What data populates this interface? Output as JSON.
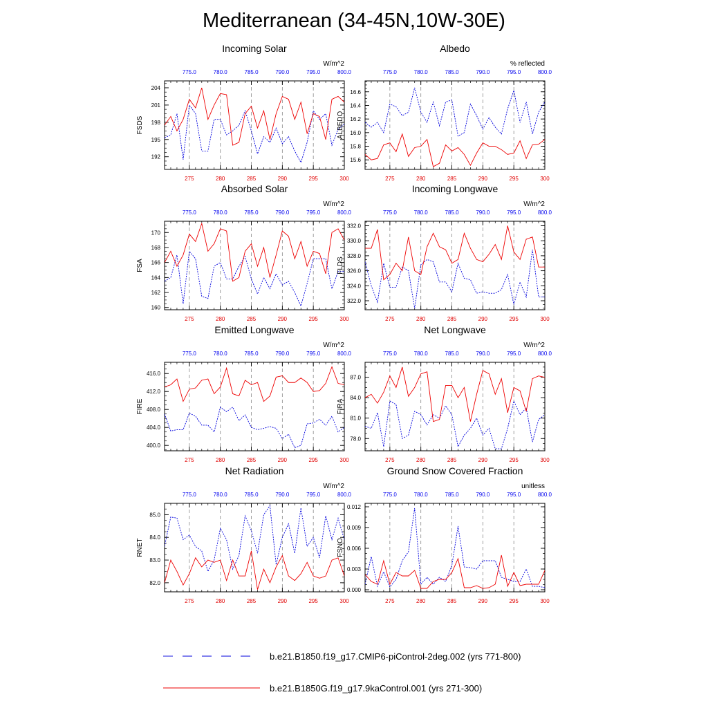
{
  "title": "Mediterranean (34-45N,10W-30E)",
  "colors": {
    "series_a": "#0000dd",
    "series_b": "#ee0000",
    "grid": "#888888"
  },
  "legend": [
    {
      "label": "b.e21.B1850.f19_g17.CMIP6-piControl-2deg.002 (yrs 771-800)",
      "style": "dashed",
      "color": "#0000dd"
    },
    {
      "label": "b.e21.B1850G.f19_g17.9kaControl.001 (yrs 271-300)",
      "style": "solid",
      "color": "#ee0000"
    }
  ],
  "chart_data": [
    {
      "type": "line",
      "title": "Incoming Solar",
      "units": "W/m^2",
      "ylabel": "FSDS",
      "xlim_bottom": [
        271,
        300
      ],
      "xlim_top": [
        771,
        800
      ],
      "x_ticks_bottom": [
        "275",
        "280",
        "285",
        "290",
        "295",
        "300"
      ],
      "x_ticks_top": [
        "775.0",
        "780.0",
        "785.0",
        "790.0",
        "795.0",
        "800.0"
      ],
      "ylim": [
        189.8,
        205.2
      ],
      "yticks": [
        192,
        195,
        198,
        201,
        204
      ],
      "ytick_labels": [
        "192",
        "195",
        "198",
        "201",
        "204"
      ],
      "series": [
        {
          "name": "b.e21.B1850.f19_g17.CMIP6-piControl-2deg.002 (yrs 771-800)",
          "values": [
            195.3,
            195.8,
            199.5,
            191.5,
            201.0,
            199.5,
            193.0,
            193.0,
            198.5,
            198.5,
            195.8,
            196.5,
            197.5,
            200.0,
            196.5,
            192.5,
            195.5,
            194.5,
            197.0,
            194.3,
            195.5,
            193.0,
            191.0,
            194.5,
            200.0,
            198.5,
            199.5,
            194.0,
            196.8,
            197.7
          ]
        },
        {
          "name": "b.e21.B1850G.f19_g17.9kaControl.001 (yrs 271-300)",
          "values": [
            197.5,
            199.0,
            196.5,
            198.5,
            202.0,
            200.5,
            204.0,
            198.5,
            201.0,
            203.0,
            202.8,
            194.0,
            194.5,
            199.5,
            200.8,
            197.0,
            200.0,
            195.0,
            199.5,
            202.5,
            202.0,
            198.5,
            201.5,
            196.0,
            199.5,
            199.0,
            195.0,
            202.0,
            202.5,
            201.5
          ]
        }
      ]
    },
    {
      "type": "line",
      "title": "Albedo",
      "units": "% reflected",
      "ylabel": "ALBEDO",
      "xlim_bottom": [
        271,
        300
      ],
      "xlim_top": [
        771,
        800
      ],
      "x_ticks_bottom": [
        "275",
        "280",
        "285",
        "290",
        "295",
        "300"
      ],
      "x_ticks_top": [
        "775.0",
        "780.0",
        "785.0",
        "790.0",
        "795.0",
        "800.0"
      ],
      "ylim": [
        15.46,
        16.76
      ],
      "yticks": [
        15.6,
        15.8,
        16.0,
        16.2,
        16.4,
        16.6
      ],
      "ytick_labels": [
        "15.6",
        "15.8",
        "16.0",
        "16.2",
        "16.4",
        "16.6"
      ],
      "series": [
        {
          "name": "b.e21.B1850.f19_g17.CMIP6-piControl-2deg.002 (yrs 771-800)",
          "values": [
            16.15,
            16.08,
            16.15,
            16.0,
            16.42,
            16.38,
            16.25,
            16.3,
            16.66,
            16.3,
            16.15,
            16.45,
            16.1,
            16.45,
            16.48,
            15.95,
            16.0,
            16.42,
            16.25,
            16.05,
            16.22,
            16.08,
            15.98,
            16.35,
            16.62,
            16.15,
            16.45,
            15.98,
            16.3,
            16.45
          ]
        },
        {
          "name": "b.e21.B1850G.f19_g17.9kaControl.001 (yrs 271-300)",
          "values": [
            15.68,
            15.6,
            15.62,
            15.82,
            15.85,
            15.72,
            15.98,
            15.65,
            15.78,
            15.8,
            15.9,
            15.5,
            15.55,
            15.82,
            15.73,
            15.78,
            15.68,
            15.52,
            15.7,
            15.85,
            15.8,
            15.8,
            15.75,
            15.68,
            15.7,
            15.88,
            15.62,
            15.82,
            15.83,
            15.9
          ]
        }
      ]
    },
    {
      "type": "line",
      "title": "Absorbed Solar",
      "units": "W/m^2",
      "ylabel": "FSA",
      "xlim_bottom": [
        271,
        300
      ],
      "xlim_top": [
        771,
        800
      ],
      "x_ticks_bottom": [
        "275",
        "280",
        "285",
        "290",
        "295",
        "300"
      ],
      "x_ticks_top": [
        "775.0",
        "780.0",
        "785.0",
        "790.0",
        "795.0",
        "800.0"
      ],
      "ylim": [
        159.7,
        171.5
      ],
      "yticks": [
        160,
        162,
        164,
        166,
        168,
        170
      ],
      "ytick_labels": [
        "160",
        "162",
        "164",
        "166",
        "168",
        "170"
      ],
      "series": [
        {
          "name": "b.e21.B1850.f19_g17.CMIP6-piControl-2deg.002 (yrs 771-800)",
          "values": [
            163.5,
            164.0,
            167.0,
            160.5,
            167.5,
            166.5,
            161.5,
            161.2,
            165.5,
            166.0,
            163.8,
            163.8,
            165.5,
            166.8,
            163.8,
            161.8,
            164.0,
            162.5,
            164.5,
            163.0,
            163.5,
            162.0,
            160.2,
            163.2,
            166.5,
            166.5,
            166.5,
            162.5,
            164.8,
            164.8
          ]
        },
        {
          "name": "b.e21.B1850G.f19_g17.9kaControl.001 (yrs 271-300)",
          "values": [
            166.0,
            167.5,
            165.5,
            167.0,
            169.8,
            168.8,
            171.2,
            167.5,
            168.5,
            170.5,
            170.2,
            163.5,
            164.0,
            167.5,
            168.5,
            165.5,
            168.0,
            164.0,
            167.0,
            170.2,
            169.5,
            166.5,
            168.8,
            165.5,
            167.5,
            167.2,
            164.5,
            170.0,
            170.5,
            169.0
          ]
        }
      ]
    },
    {
      "type": "line",
      "title": "Incoming Longwave",
      "units": "W/m^2",
      "ylabel": "FLDS",
      "xlim_bottom": [
        271,
        300
      ],
      "xlim_top": [
        771,
        800
      ],
      "x_ticks_bottom": [
        "275",
        "280",
        "285",
        "290",
        "295",
        "300"
      ],
      "x_ticks_top": [
        "775.0",
        "780.0",
        "785.0",
        "790.0",
        "795.0",
        "800.0"
      ],
      "ylim": [
        320.8,
        332.6
      ],
      "yticks": [
        322,
        324,
        326,
        328,
        330,
        332
      ],
      "ytick_labels": [
        "322.0",
        "324.0",
        "326.0",
        "328.0",
        "330.0",
        "332.0"
      ],
      "series": [
        {
          "name": "b.e21.B1850.f19_g17.CMIP6-piControl-2deg.002 (yrs 771-800)",
          "values": [
            327.2,
            324.0,
            321.8,
            327.0,
            323.8,
            323.8,
            326.5,
            326.0,
            321.0,
            326.8,
            327.5,
            327.2,
            324.5,
            324.5,
            323.2,
            327.0,
            325.0,
            324.8,
            323.0,
            323.2,
            323.0,
            323.0,
            323.5,
            325.5,
            321.5,
            324.5,
            322.5,
            328.8,
            322.5,
            322.5
          ]
        },
        {
          "name": "b.e21.B1850G.f19_g17.9kaControl.001 (yrs 271-300)",
          "values": [
            329.0,
            329.0,
            331.5,
            324.8,
            325.5,
            327.0,
            326.0,
            330.5,
            326.0,
            325.5,
            329.2,
            331.0,
            329.2,
            328.8,
            327.0,
            327.5,
            331.0,
            329.0,
            327.5,
            327.2,
            328.2,
            329.5,
            327.5,
            332.0,
            328.5,
            327.5,
            330.2,
            330.5,
            326.5,
            326.5
          ]
        }
      ]
    },
    {
      "type": "line",
      "title": "Emitted Longwave",
      "units": "W/m^2",
      "ylabel": "FIRE",
      "xlim_bottom": [
        271,
        300
      ],
      "xlim_top": [
        771,
        800
      ],
      "x_ticks_bottom": [
        "275",
        "280",
        "285",
        "290",
        "295",
        "300"
      ],
      "x_ticks_top": [
        "775.0",
        "780.0",
        "785.0",
        "790.0",
        "795.0",
        "800.0"
      ],
      "ylim": [
        398.8,
        418.5
      ],
      "yticks": [
        400,
        404,
        408,
        412,
        416
      ],
      "ytick_labels": [
        "400.0",
        "404.0",
        "408.0",
        "412.0",
        "416.0"
      ],
      "series": [
        {
          "name": "b.e21.B1850.f19_g17.CMIP6-piControl-2deg.002 (yrs 771-800)",
          "values": [
            407.0,
            403.2,
            403.5,
            403.5,
            407.2,
            406.5,
            404.5,
            404.5,
            403.0,
            408.5,
            407.5,
            408.5,
            405.5,
            406.8,
            404.0,
            403.5,
            403.8,
            404.2,
            403.8,
            401.5,
            402.5,
            399.5,
            400.0,
            404.8,
            405.0,
            405.8,
            404.5,
            406.5,
            403.0,
            404.0
          ]
        },
        {
          "name": "b.e21.B1850G.f19_g17.9kaControl.001 (yrs 271-300)",
          "values": [
            413.0,
            413.5,
            414.8,
            409.8,
            412.5,
            412.8,
            414.5,
            414.8,
            411.5,
            413.0,
            417.2,
            411.5,
            411.0,
            414.5,
            413.5,
            414.0,
            409.8,
            411.0,
            415.2,
            415.5,
            414.0,
            414.0,
            415.0,
            414.0,
            412.0,
            412.2,
            413.8,
            417.5,
            413.8,
            413.5
          ]
        }
      ]
    },
    {
      "type": "line",
      "title": "Net Longwave",
      "units": "W/m^2",
      "ylabel": "FIRA",
      "xlim_bottom": [
        271,
        300
      ],
      "xlim_top": [
        771,
        800
      ],
      "x_ticks_bottom": [
        "275",
        "280",
        "285",
        "290",
        "295",
        "300"
      ],
      "x_ticks_top": [
        "775.0",
        "780.0",
        "785.0",
        "790.0",
        "795.0",
        "800.0"
      ],
      "ylim": [
        76.2,
        89.2
      ],
      "yticks": [
        78,
        81,
        84,
        87
      ],
      "ytick_labels": [
        "78.0",
        "81.0",
        "84.0",
        "87.0"
      ],
      "series": [
        {
          "name": "b.e21.B1850.f19_g17.CMIP6-piControl-2deg.002 (yrs 771-800)",
          "values": [
            79.8,
            79.5,
            81.8,
            76.8,
            83.5,
            83.0,
            78.0,
            78.5,
            82.0,
            81.5,
            80.0,
            81.5,
            81.0,
            82.8,
            81.5,
            76.8,
            78.5,
            79.5,
            81.0,
            78.5,
            79.5,
            76.5,
            76.5,
            79.5,
            83.5,
            81.5,
            82.5,
            77.5,
            80.8,
            81.5
          ]
        },
        {
          "name": "b.e21.B1850G.f19_g17.9kaControl.001 (yrs 271-300)",
          "values": [
            84.0,
            84.5,
            83.2,
            84.8,
            87.2,
            85.5,
            88.5,
            84.2,
            85.5,
            87.5,
            87.8,
            80.5,
            80.8,
            85.8,
            85.8,
            84.0,
            85.5,
            80.5,
            84.5,
            88.0,
            87.5,
            84.5,
            86.8,
            81.8,
            85.5,
            85.0,
            82.0,
            86.8,
            87.2,
            87.0
          ]
        }
      ]
    },
    {
      "type": "line",
      "title": "Net Radiation",
      "units": "W/m^2",
      "ylabel": "RNET",
      "xlim_bottom": [
        271,
        300
      ],
      "xlim_top": [
        771,
        800
      ],
      "x_ticks_bottom": [
        "275",
        "280",
        "285",
        "290",
        "295",
        "300"
      ],
      "x_ticks_top": [
        "775.0",
        "780.0",
        "785.0",
        "790.0",
        "795.0",
        "800.0"
      ],
      "ylim": [
        81.6,
        85.5
      ],
      "yticks": [
        82,
        83,
        84,
        85
      ],
      "ytick_labels": [
        "82.0",
        "83.0",
        "84.0",
        "85.0"
      ],
      "series": [
        {
          "name": "b.e21.B1850.f19_g17.CMIP6-piControl-2deg.002 (yrs 771-800)",
          "values": [
            83.6,
            84.9,
            84.85,
            83.9,
            84.1,
            83.6,
            83.4,
            82.5,
            83.0,
            84.4,
            83.9,
            82.6,
            83.2,
            84.95,
            84.3,
            83.3,
            85.0,
            85.4,
            82.8,
            84.0,
            84.6,
            83.3,
            85.3,
            83.6,
            84.0,
            83.1,
            84.95,
            83.9,
            84.85,
            83.9
          ]
        },
        {
          "name": "b.e21.B1850G.f19_g17.9kaControl.001 (yrs 271-300)",
          "values": [
            82.0,
            83.0,
            82.5,
            81.9,
            82.4,
            83.1,
            82.7,
            83.0,
            82.9,
            83.0,
            82.1,
            83.0,
            82.3,
            82.3,
            83.4,
            81.7,
            82.6,
            82.0,
            82.7,
            83.2,
            82.3,
            82.1,
            82.4,
            82.9,
            82.3,
            82.2,
            82.3,
            83.0,
            83.1,
            82.3
          ]
        }
      ]
    },
    {
      "type": "line",
      "title": "Ground Snow Covered Fraction",
      "units": "unitless",
      "ylabel": "FSNO",
      "xlim_bottom": [
        271,
        300
      ],
      "xlim_top": [
        771,
        800
      ],
      "x_ticks_bottom": [
        "275",
        "280",
        "285",
        "290",
        "295",
        "300"
      ],
      "x_ticks_top": [
        "775.0",
        "780.0",
        "785.0",
        "790.0",
        "795.0",
        "800.0"
      ],
      "ylim": [
        -0.0003,
        0.0125
      ],
      "yticks": [
        0.0,
        0.003,
        0.006,
        0.009,
        0.012
      ],
      "ytick_labels": [
        "0.000",
        "0.003",
        "0.006",
        "0.009",
        "0.012"
      ],
      "series": [
        {
          "name": "b.e21.B1850.f19_g17.CMIP6-piControl-2deg.002 (yrs 771-800)",
          "values": [
            0.0008,
            0.0048,
            0.0005,
            0.0026,
            0.0004,
            0.0015,
            0.0042,
            0.0055,
            0.0118,
            0.0008,
            0.0018,
            0.0008,
            0.0018,
            0.0012,
            0.0035,
            0.0092,
            0.0033,
            0.0032,
            0.003,
            0.0042,
            0.0042,
            0.0042,
            0.0018,
            0.0015,
            0.0012,
            0.0012,
            0.003,
            0.0005,
            0.0005,
            0.0003
          ]
        },
        {
          "name": "b.e21.B1850G.f19_g17.9kaControl.001 (yrs 271-300)",
          "values": [
            0.0022,
            0.0012,
            0.0008,
            0.0042,
            0.0008,
            0.0025,
            0.002,
            0.002,
            0.0028,
            0.0002,
            0.0002,
            0.0012,
            0.0015,
            0.0015,
            0.0025,
            0.0045,
            0.0003,
            0.0003,
            0.0006,
            0.0002,
            0.0003,
            0.0008,
            0.005,
            0.0005,
            0.0025,
            0.0006,
            0.0008,
            0.0008,
            0.0008,
            0.0028
          ]
        }
      ]
    }
  ]
}
